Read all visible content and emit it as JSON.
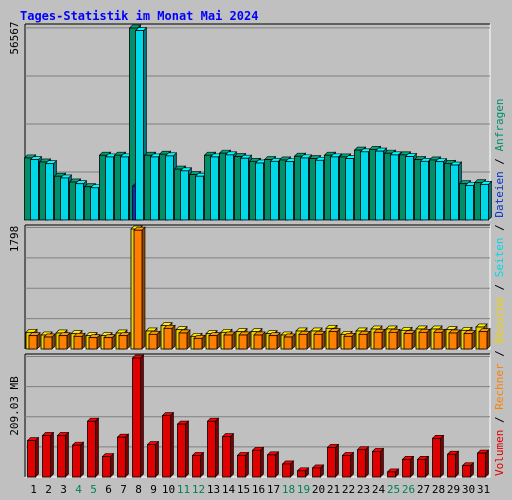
{
  "chart_data": {
    "type": "bar",
    "title": "Tages-Statistik im Monat Mai 2024",
    "categories": [
      "1",
      "2",
      "3",
      "4",
      "5",
      "6",
      "7",
      "8",
      "9",
      "10",
      "11",
      "12",
      "13",
      "14",
      "15",
      "16",
      "17",
      "18",
      "19",
      "20",
      "21",
      "22",
      "23",
      "24",
      "25",
      "26",
      "27",
      "28",
      "29",
      "30",
      "31"
    ],
    "weekend_days": [
      "4",
      "5",
      "11",
      "12",
      "18",
      "19",
      "25",
      "26"
    ],
    "panels": [
      {
        "name": "hits",
        "ymax_label": "56567",
        "ylim": [
          0,
          56567
        ],
        "series": [
          {
            "name": "Anfragen",
            "color": "#008f68",
            "values": [
              18300,
              17100,
              12900,
              11200,
              9800,
              19100,
              19100,
              56567,
              19100,
              19400,
              15000,
              13400,
              19100,
              19700,
              18700,
              17300,
              17800,
              17700,
              18800,
              18100,
              19100,
              18600,
              20600,
              20800,
              19700,
              19200,
              17800,
              17700,
              16700,
              10700,
              11000
            ]
          },
          {
            "name": "Dateien",
            "color": "#0033cc",
            "values": [
              0,
              0,
              0,
              0,
              0,
              0,
              0,
              10000,
              0,
              0,
              0,
              0,
              0,
              0,
              0,
              0,
              0,
              0,
              0,
              0,
              0,
              0,
              0,
              0,
              0,
              0,
              0,
              0,
              0,
              0,
              0
            ]
          },
          {
            "name": "Seiten",
            "color": "#00d8e8",
            "values": [
              17800,
              16600,
              12400,
              10700,
              9500,
              18600,
              18600,
              55800,
              18600,
              18900,
              14500,
              12900,
              18600,
              19200,
              18200,
              16800,
              17300,
              17200,
              18300,
              17600,
              18600,
              18100,
              20100,
              20300,
              19200,
              18700,
              17300,
              17200,
              16200,
              10200,
              10500
            ]
          }
        ]
      },
      {
        "name": "visits",
        "ymax_label": "1798",
        "ylim": [
          0,
          1798
        ],
        "series": [
          {
            "name": "Besuche",
            "color": "#f0d000",
            "values": [
              250,
              210,
              240,
              230,
              200,
              200,
              240,
              1798,
              270,
              350,
              290,
              190,
              230,
              250,
              260,
              260,
              230,
              210,
              270,
              270,
              310,
              220,
              270,
              300,
              300,
              280,
              300,
              300,
              290,
              280,
              330
            ]
          },
          {
            "name": "Rechner",
            "color": "#ff8000",
            "values": [
              200,
              180,
              200,
              190,
              170,
              170,
              200,
              1780,
              220,
              310,
              240,
              160,
              200,
              210,
              210,
              210,
              200,
              180,
              220,
              220,
              260,
              190,
              220,
              250,
              250,
              230,
              250,
              250,
              240,
              230,
              260
            ]
          }
        ]
      },
      {
        "name": "volume",
        "ymax_label": "209.03 MB",
        "ylim": [
          0,
          209.03
        ],
        "series": [
          {
            "name": "Volumen",
            "color": "#e00000",
            "values": [
              64,
              73,
              73,
              56,
              98,
              36,
              70,
              209,
              57,
              108,
              93,
              38,
              98,
              71,
              38,
              47,
              39,
              23,
              11,
              16,
              52,
              38,
              48,
              45,
              9,
              31,
              31,
              68,
              40,
              20,
              42
            ]
          }
        ]
      }
    ],
    "legend": {
      "placement": "right-vertical",
      "items": [
        {
          "label": "Volumen",
          "color": "#e00000"
        },
        {
          "label": "Rechner",
          "color": "#ff8000"
        },
        {
          "label": "Besuche",
          "color": "#f0d000"
        },
        {
          "label": "Seiten",
          "color": "#00d8e8"
        },
        {
          "label": "Dateien",
          "color": "#0033cc"
        },
        {
          "label": "Anfragen",
          "color": "#008f68"
        }
      ],
      "separator": "/"
    },
    "colors": {
      "background": "#c0c0c0",
      "title": "#0000ff",
      "weekday_label": "#000000",
      "weekend_label": "#00805a",
      "grid": "#808080",
      "legend_separator": "#000000"
    }
  }
}
